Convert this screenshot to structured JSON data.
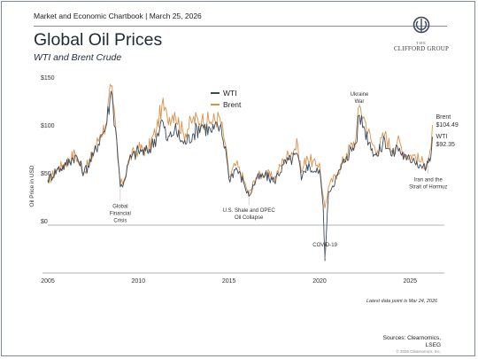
{
  "header": {
    "chartbook": "Market and Economic Chartbook | March 25, 2026",
    "title": "Global Oil Prices",
    "subtitle": "WTI and Brent Crude"
  },
  "logo": {
    "the": "THE",
    "name": "CLIFFORD GROUP",
    "color": "#3b4660"
  },
  "footer": {
    "latest_note": "Latest data point is Mar 24, 2026",
    "sources_line1": "Sources: Clearnomics,",
    "sources_line2": "LSEG",
    "copyright": "© 2026 Clearnomics, Inc."
  },
  "colors": {
    "wti": "#3b4a5c",
    "brent": "#d9924a",
    "zero_line": "#9a9a9a",
    "annotation_line": "#b8b8b8"
  },
  "chart_data": {
    "type": "line",
    "title": "",
    "xlabel": "",
    "ylabel": "Oil Price in USD",
    "xlim": [
      2005,
      2026.5
    ],
    "ylim": [
      -50,
      150
    ],
    "y_ticks": [
      {
        "value": 0,
        "label": "$0"
      },
      {
        "value": 50,
        "label": "$50"
      },
      {
        "value": 100,
        "label": "$100"
      },
      {
        "value": 150,
        "label": "$150"
      }
    ],
    "x_ticks": [
      2005,
      2010,
      2015,
      2020,
      2025
    ],
    "legend": {
      "position": "top-center",
      "entries": [
        "WTI",
        "Brent"
      ]
    },
    "series": [
      {
        "name": "WTI",
        "points": [
          [
            2005.0,
            47
          ],
          [
            2005.5,
            58
          ],
          [
            2006.0,
            63
          ],
          [
            2006.5,
            73
          ],
          [
            2007.0,
            55
          ],
          [
            2007.5,
            72
          ],
          [
            2007.9,
            92
          ],
          [
            2008.2,
            102
          ],
          [
            2008.5,
            140
          ],
          [
            2008.6,
            125
          ],
          [
            2008.8,
            90
          ],
          [
            2009.0,
            40
          ],
          [
            2009.2,
            45
          ],
          [
            2009.5,
            68
          ],
          [
            2010.0,
            78
          ],
          [
            2010.5,
            76
          ],
          [
            2011.0,
            92
          ],
          [
            2011.3,
            110
          ],
          [
            2011.6,
            88
          ],
          [
            2012.0,
            100
          ],
          [
            2012.5,
            85
          ],
          [
            2013.0,
            95
          ],
          [
            2013.5,
            105
          ],
          [
            2014.0,
            98
          ],
          [
            2014.5,
            103
          ],
          [
            2014.8,
            82
          ],
          [
            2015.0,
            48
          ],
          [
            2015.4,
            60
          ],
          [
            2015.8,
            45
          ],
          [
            2016.1,
            30
          ],
          [
            2016.5,
            48
          ],
          [
            2017.0,
            52
          ],
          [
            2017.5,
            46
          ],
          [
            2018.0,
            63
          ],
          [
            2018.8,
            73
          ],
          [
            2019.0,
            47
          ],
          [
            2019.3,
            63
          ],
          [
            2019.8,
            55
          ],
          [
            2020.0,
            58
          ],
          [
            2020.2,
            20
          ],
          [
            2020.3,
            -37
          ],
          [
            2020.5,
            35
          ],
          [
            2021.0,
            52
          ],
          [
            2021.5,
            72
          ],
          [
            2022.0,
            85
          ],
          [
            2022.2,
            115
          ],
          [
            2022.5,
            100
          ],
          [
            2022.9,
            80
          ],
          [
            2023.2,
            72
          ],
          [
            2023.6,
            90
          ],
          [
            2024.0,
            72
          ],
          [
            2024.3,
            82
          ],
          [
            2024.8,
            68
          ],
          [
            2025.2,
            70
          ],
          [
            2025.6,
            62
          ],
          [
            2025.9,
            60
          ],
          [
            2026.0,
            65
          ],
          [
            2026.15,
            72
          ],
          [
            2026.23,
            92.35
          ]
        ]
      },
      {
        "name": "Brent",
        "points": [
          [
            2005.0,
            45
          ],
          [
            2005.5,
            58
          ],
          [
            2006.0,
            65
          ],
          [
            2006.5,
            75
          ],
          [
            2007.0,
            55
          ],
          [
            2007.5,
            75
          ],
          [
            2007.9,
            95
          ],
          [
            2008.2,
            105
          ],
          [
            2008.5,
            145
          ],
          [
            2008.6,
            128
          ],
          [
            2008.8,
            90
          ],
          [
            2009.0,
            42
          ],
          [
            2009.2,
            47
          ],
          [
            2009.5,
            70
          ],
          [
            2010.0,
            80
          ],
          [
            2010.5,
            78
          ],
          [
            2011.0,
            100
          ],
          [
            2011.3,
            125
          ],
          [
            2011.6,
            112
          ],
          [
            2012.0,
            118
          ],
          [
            2012.5,
            95
          ],
          [
            2013.0,
            110
          ],
          [
            2013.5,
            110
          ],
          [
            2014.0,
            108
          ],
          [
            2014.5,
            112
          ],
          [
            2014.8,
            85
          ],
          [
            2015.0,
            50
          ],
          [
            2015.4,
            64
          ],
          [
            2015.8,
            48
          ],
          [
            2016.1,
            32
          ],
          [
            2016.5,
            50
          ],
          [
            2017.0,
            55
          ],
          [
            2017.5,
            48
          ],
          [
            2018.0,
            68
          ],
          [
            2018.8,
            84
          ],
          [
            2019.0,
            55
          ],
          [
            2019.3,
            72
          ],
          [
            2019.8,
            62
          ],
          [
            2020.0,
            65
          ],
          [
            2020.2,
            30
          ],
          [
            2020.3,
            18
          ],
          [
            2020.5,
            40
          ],
          [
            2021.0,
            55
          ],
          [
            2021.5,
            75
          ],
          [
            2022.0,
            90
          ],
          [
            2022.2,
            125
          ],
          [
            2022.5,
            110
          ],
          [
            2022.9,
            85
          ],
          [
            2023.2,
            78
          ],
          [
            2023.6,
            95
          ],
          [
            2024.0,
            78
          ],
          [
            2024.3,
            88
          ],
          [
            2024.8,
            73
          ],
          [
            2025.2,
            73
          ],
          [
            2025.6,
            66
          ],
          [
            2025.9,
            64
          ],
          [
            2026.0,
            70
          ],
          [
            2026.15,
            80
          ],
          [
            2026.23,
            104.49
          ]
        ]
      }
    ],
    "end_labels": [
      {
        "name": "Brent",
        "value": "$104.49"
      },
      {
        "name": "WTI",
        "value": "$92.35"
      }
    ],
    "annotations": [
      {
        "id": "gfc",
        "lines": [
          "Global",
          "Financial",
          "Crisis"
        ],
        "x": 2009.0,
        "y": 40,
        "text_y": 18
      },
      {
        "id": "shale",
        "lines": [
          "U.S. Shale and OPEC",
          "Oil Collapse"
        ],
        "x": 2016.1,
        "y": 32,
        "text_y": 14
      },
      {
        "id": "covid",
        "lines": [
          "COVID-19"
        ],
        "x": 2020.3,
        "y": -37,
        "text_y": -22
      },
      {
        "id": "ukraine",
        "lines": [
          "Ukraine",
          "War"
        ],
        "x": 2022.2,
        "y": 125,
        "text_y": 135
      },
      {
        "id": "iran",
        "lines": [
          "Iran and the",
          "Strait of Hormuz"
        ],
        "x": 2026.0,
        "y": 65,
        "text_y": 46
      }
    ]
  }
}
